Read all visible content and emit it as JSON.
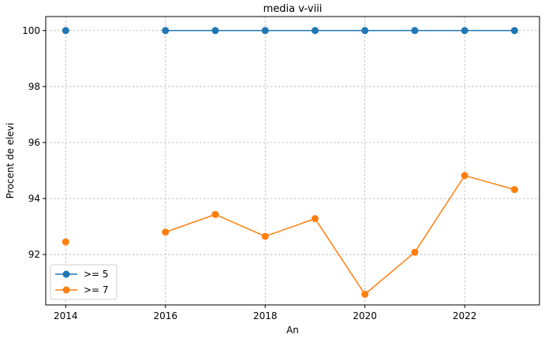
{
  "chart_data": {
    "type": "line",
    "title": "media v-viii",
    "xlabel": "An",
    "ylabel": "Procent de elevi",
    "x": [
      2014,
      2015,
      2016,
      2017,
      2018,
      2019,
      2020,
      2021,
      2022,
      2023
    ],
    "xlim": [
      2013.6,
      2023.5
    ],
    "ylim": [
      90.2,
      100.5
    ],
    "x_ticks": [
      2014,
      2016,
      2018,
      2020,
      2022
    ],
    "y_ticks": [
      92,
      94,
      96,
      98,
      100
    ],
    "x_tick_labels": [
      "2014",
      "2016",
      "2018",
      "2020",
      "2022"
    ],
    "y_tick_labels": [
      "92",
      "94",
      "96",
      "98",
      "100"
    ],
    "grid": true,
    "legend_position": "lower-left",
    "series": [
      {
        "name": ">= 5",
        "color": "#1f77b4",
        "values": [
          100.0,
          null,
          100.0,
          100.0,
          100.0,
          100.0,
          100.0,
          100.0,
          100.0,
          100.0
        ]
      },
      {
        "name": ">= 7",
        "color": "#ff7f0e",
        "values": [
          92.45,
          null,
          92.8,
          93.43,
          92.65,
          93.28,
          90.58,
          92.08,
          94.82,
          94.32
        ]
      }
    ]
  }
}
